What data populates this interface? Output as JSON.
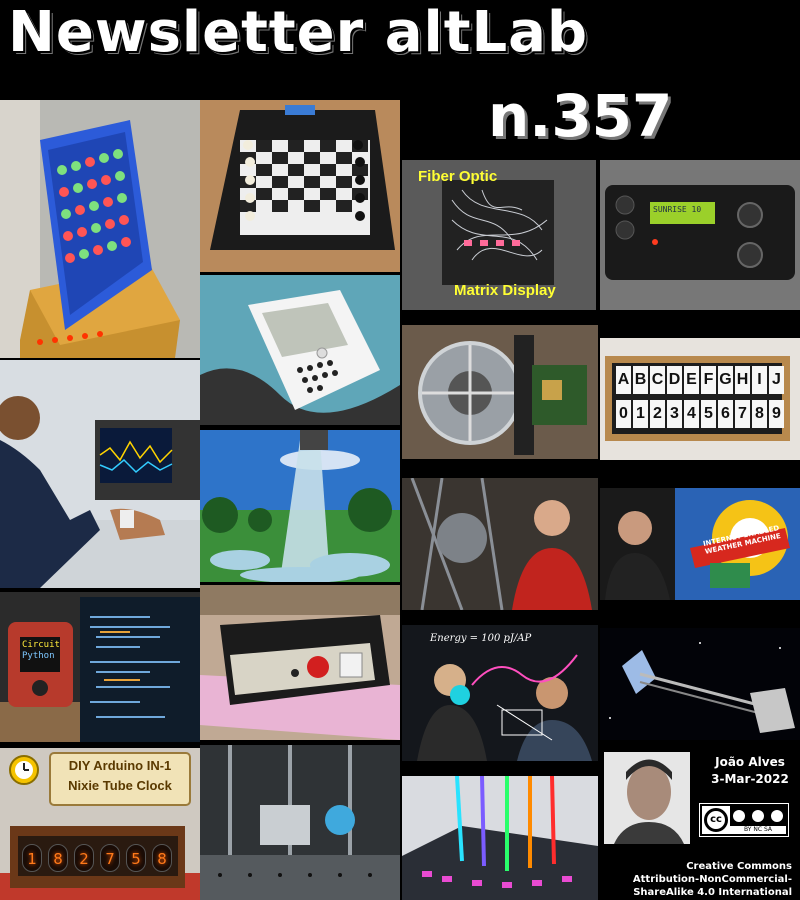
{
  "header": {
    "title": "Newsletter altLab",
    "issue": "n.357"
  },
  "tiles": {
    "fiber_optic_top": "Fiber Optic",
    "fiber_optic_bottom": "Matrix Display",
    "lcd_line1": "SUNRISE 10",
    "circuit_python_line1": "Circuit",
    "circuit_python_line2": "Python",
    "nixie_line1": "DIY Arduino IN-1",
    "nixie_line2": "Nixie Tube Clock",
    "nixie_digits": [
      "1",
      "8",
      "2",
      "7",
      "5",
      "8"
    ],
    "weather_banner": "INTERNET ENABLED WEATHER MACHINE",
    "energy_formula": "Energy = 100 pJ/AP",
    "letters_row": [
      "A",
      "B",
      "C",
      "D",
      "E",
      "F",
      "G",
      "H",
      "I",
      "J"
    ],
    "digits_row": [
      "0",
      "1",
      "2",
      "3",
      "4",
      "5",
      "6",
      "7",
      "8",
      "9"
    ]
  },
  "credits": {
    "author": "João Alves",
    "date": "3-Mar-2022",
    "cc_badge": "BY NC SA",
    "license_line1": "Creative Commons",
    "license_line2": "Attribution-NonCommercial-",
    "license_line3": "ShareAlike 4.0 International"
  },
  "icons": [
    "alarm-clock-icon",
    "creative-commons-icon"
  ]
}
